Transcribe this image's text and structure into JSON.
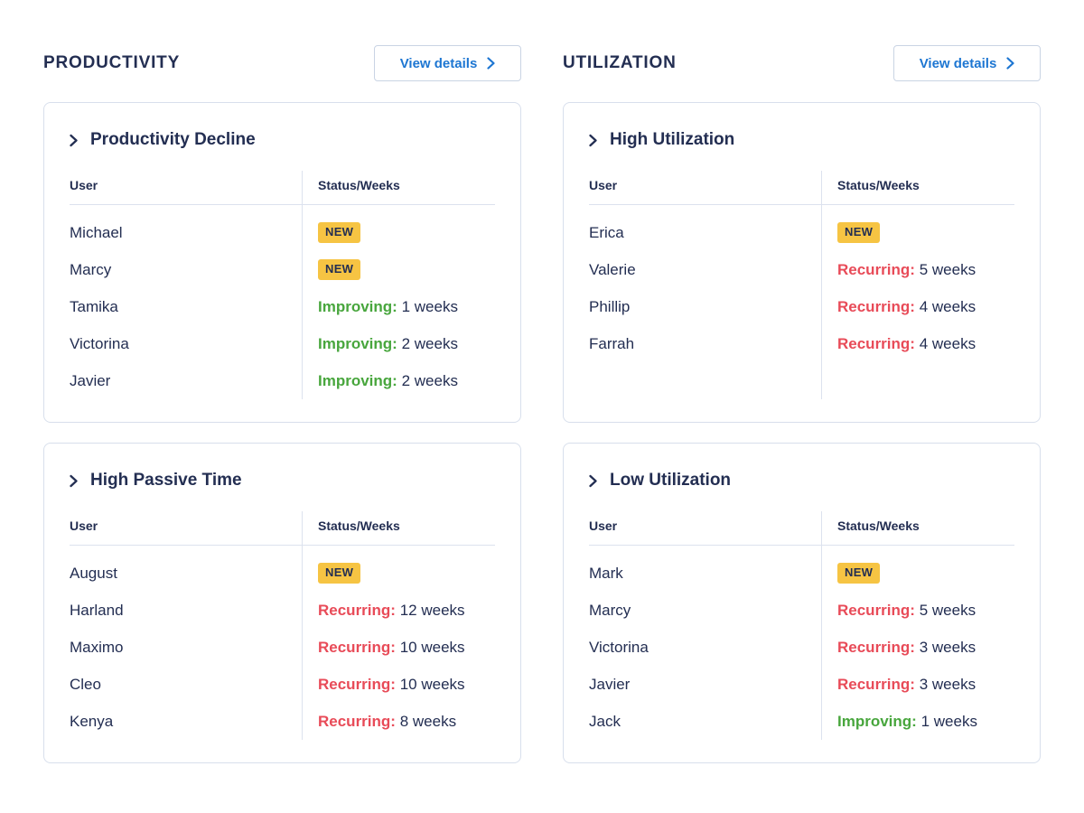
{
  "colors": {
    "navy": "#232e52",
    "accent_blue": "#1d76d2",
    "badge_yellow": "#f6c443",
    "improving_green": "#48a63d",
    "recurring_red": "#e84b58",
    "card_border": "#d8dfec"
  },
  "sections": [
    {
      "title": "PRODUCTIVITY",
      "view_details_label": "View details",
      "cards": [
        {
          "title": "Productivity Decline",
          "columns": {
            "user": "User",
            "status": "Status/Weeks"
          },
          "rows": [
            {
              "user": "Michael",
              "type": "new",
              "status": "NEW",
              "weeks": ""
            },
            {
              "user": "Marcy",
              "type": "new",
              "status": "NEW",
              "weeks": ""
            },
            {
              "user": "Tamika",
              "type": "improving",
              "status": "Improving:",
              "weeks": "1 weeks"
            },
            {
              "user": "Victorina",
              "type": "improving",
              "status": "Improving:",
              "weeks": "2 weeks"
            },
            {
              "user": "Javier",
              "type": "improving",
              "status": "Improving:",
              "weeks": "2 weeks"
            }
          ]
        },
        {
          "title": "High Passive Time",
          "columns": {
            "user": "User",
            "status": "Status/Weeks"
          },
          "rows": [
            {
              "user": "August",
              "type": "new",
              "status": "NEW",
              "weeks": ""
            },
            {
              "user": "Harland",
              "type": "recurring",
              "status": "Recurring:",
              "weeks": "12 weeks"
            },
            {
              "user": "Maximo",
              "type": "recurring",
              "status": "Recurring:",
              "weeks": "10 weeks"
            },
            {
              "user": "Cleo",
              "type": "recurring",
              "status": "Recurring:",
              "weeks": "10 weeks"
            },
            {
              "user": "Kenya",
              "type": "recurring",
              "status": "Recurring:",
              "weeks": "8 weeks"
            }
          ]
        }
      ]
    },
    {
      "title": "UTILIZATION",
      "view_details_label": "View details",
      "cards": [
        {
          "title": "High Utilization",
          "columns": {
            "user": "User",
            "status": "Status/Weeks"
          },
          "rows": [
            {
              "user": "Erica",
              "type": "new",
              "status": "NEW",
              "weeks": ""
            },
            {
              "user": "Valerie",
              "type": "recurring",
              "status": "Recurring:",
              "weeks": "5 weeks"
            },
            {
              "user": "Phillip",
              "type": "recurring",
              "status": "Recurring:",
              "weeks": "4 weeks"
            },
            {
              "user": "Farrah",
              "type": "recurring",
              "status": "Recurring:",
              "weeks": "4 weeks"
            }
          ]
        },
        {
          "title": "Low Utilization",
          "columns": {
            "user": "User",
            "status": "Status/Weeks"
          },
          "rows": [
            {
              "user": "Mark",
              "type": "new",
              "status": "NEW",
              "weeks": ""
            },
            {
              "user": "Marcy",
              "type": "recurring",
              "status": "Recurring:",
              "weeks": "5 weeks"
            },
            {
              "user": "Victorina",
              "type": "recurring",
              "status": "Recurring:",
              "weeks": "3 weeks"
            },
            {
              "user": "Javier",
              "type": "recurring",
              "status": "Recurring:",
              "weeks": "3 weeks"
            },
            {
              "user": "Jack",
              "type": "improving",
              "status": "Improving:",
              "weeks": "1 weeks"
            }
          ]
        }
      ]
    }
  ]
}
